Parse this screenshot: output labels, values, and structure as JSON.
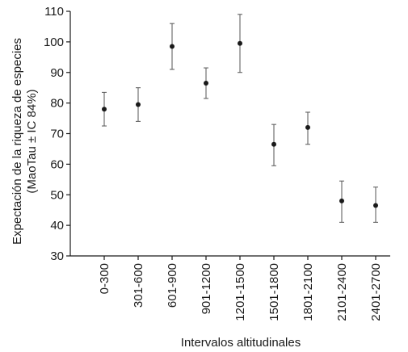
{
  "chart_data": {
    "type": "scatter",
    "title": "",
    "xlabel": "Intervalos altitudinales",
    "ylabel": [
      "Expectación de la riqueza de especies",
      "(MaoTau ± IC 84%)"
    ],
    "categories": [
      "0-300",
      "301-600",
      "601-900",
      "901-1200",
      "1201-1500",
      "1501-1800",
      "1801-2100",
      "2101-2400",
      "2401-2700"
    ],
    "series": [
      {
        "values": [
          78,
          79.5,
          98.5,
          86.5,
          99.5,
          66.5,
          72,
          48,
          46.5
        ],
        "error_low": [
          72.5,
          74,
          91,
          81.5,
          90,
          59.5,
          66.5,
          41,
          41
        ],
        "error_high": [
          83.5,
          85,
          106,
          91.5,
          109,
          73,
          77,
          54.5,
          52.5
        ]
      }
    ],
    "ylim": [
      30,
      110
    ],
    "yticks": [
      30,
      40,
      50,
      60,
      70,
      80,
      90,
      100,
      110
    ],
    "grid": false,
    "colors": {
      "points": "#1a1a1a",
      "error_bars": "#555555",
      "axes": "#1a1a1a"
    }
  }
}
